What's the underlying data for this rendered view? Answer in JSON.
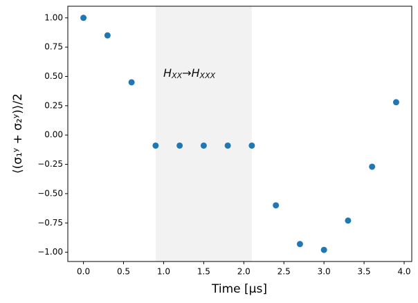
{
  "chart_data": {
    "type": "scatter",
    "xlabel": "Time [μs]",
    "ylabel": "⟨(σ₁ʸ + σ₂ʸ)⟩/2",
    "x": [
      0.0,
      0.3,
      0.6,
      0.9,
      1.2,
      1.5,
      1.8,
      2.1,
      2.4,
      2.7,
      3.0,
      3.3,
      3.6,
      3.9
    ],
    "values": [
      1.0,
      0.85,
      0.45,
      -0.09,
      -0.09,
      -0.09,
      -0.09,
      -0.09,
      -0.6,
      -0.93,
      -0.98,
      -0.73,
      -0.27,
      0.28
    ],
    "color": "#1f77b4",
    "shaded_region": [
      0.9,
      2.1
    ],
    "annotation": [
      {
        "text": "H"
      },
      {
        "text": "XX",
        "sub": true
      },
      {
        "text": "→"
      },
      {
        "text": "H"
      },
      {
        "text": "XXX",
        "sub": true
      }
    ],
    "xlim": [
      -0.195,
      4.095
    ],
    "ylim": [
      -1.079,
      1.099
    ],
    "xticks": [
      {
        "value": 0,
        "label": "0.0"
      },
      {
        "value": 0.5,
        "label": "0.5"
      },
      {
        "value": 1,
        "label": "1.0"
      },
      {
        "value": 1.5,
        "label": "1.5"
      },
      {
        "value": 2,
        "label": "2.0"
      },
      {
        "value": 2.5,
        "label": "2.5"
      },
      {
        "value": 3,
        "label": "3.0"
      },
      {
        "value": 3.5,
        "label": "3.5"
      },
      {
        "value": 4,
        "label": "4.0"
      }
    ],
    "yticks": [
      {
        "value": -1,
        "label": "−1.00"
      },
      {
        "value": -0.75,
        "label": "−0.75"
      },
      {
        "value": -0.5,
        "label": "−0.50"
      },
      {
        "value": -0.25,
        "label": "−0.25"
      },
      {
        "value": 0,
        "label": "0.00"
      },
      {
        "value": 0.25,
        "label": "0.25"
      },
      {
        "value": 0.5,
        "label": "0.50"
      },
      {
        "value": 0.75,
        "label": "0.75"
      },
      {
        "value": 1,
        "label": "1.00"
      }
    ]
  }
}
